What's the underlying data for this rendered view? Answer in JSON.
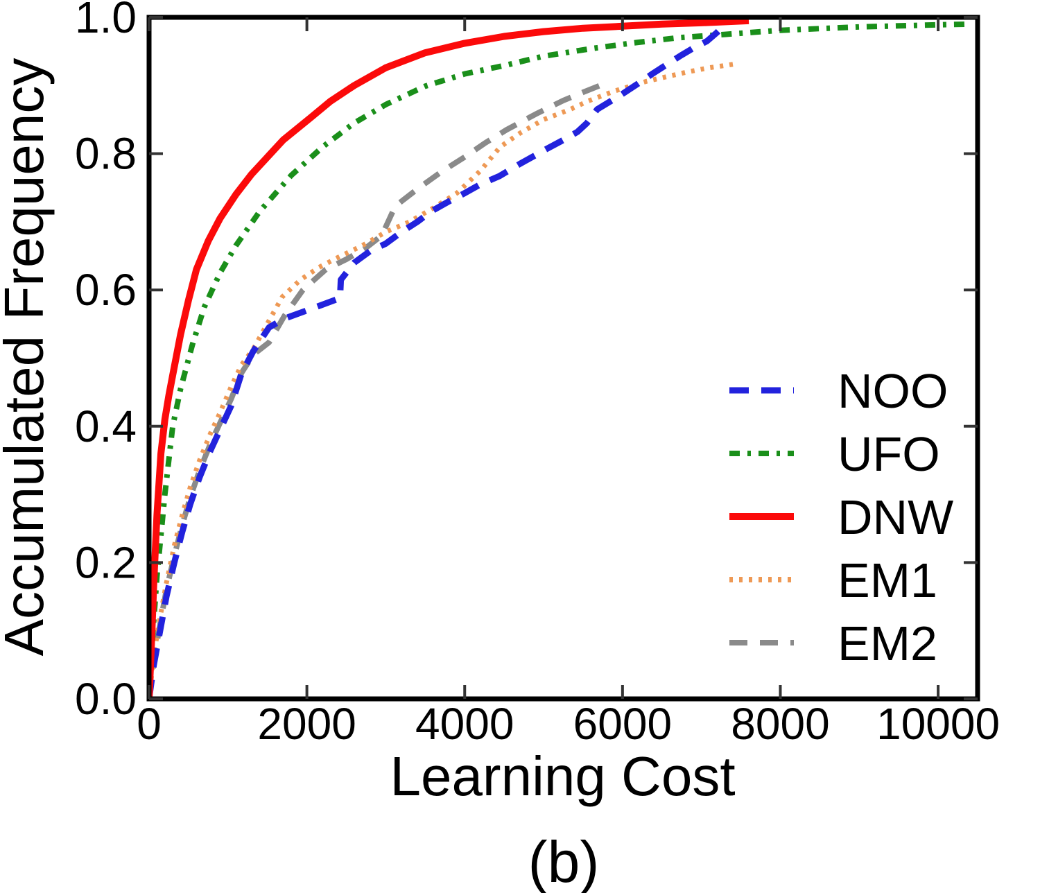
{
  "figure": {
    "caption": "(b)",
    "background": "#ffffff",
    "text_color": "#000000",
    "spine_color": "#000000",
    "tick_color": "#333333"
  },
  "chart_data": {
    "type": "line",
    "title": "",
    "xlabel": "Learning Cost",
    "ylabel": "Accumulated Frequency",
    "xlim": [
      0,
      10500
    ],
    "ylim": [
      0.0,
      1.0
    ],
    "grid": false,
    "legend_position": "lower right",
    "x_ticks": [
      0,
      2000,
      4000,
      6000,
      8000,
      10000
    ],
    "x_tick_labels": [
      "0",
      "2000",
      "4000",
      "6000",
      "8000",
      "10000"
    ],
    "y_ticks": [
      0.0,
      0.2,
      0.4,
      0.6,
      0.8,
      1.0
    ],
    "y_tick_labels": [
      "0.0",
      "0.2",
      "0.4",
      "0.6",
      "0.8",
      "1.0"
    ],
    "series": [
      {
        "name": "NOO",
        "color": "#2222dd",
        "style": "dashed",
        "line_width": 9,
        "dash": "28 18",
        "zorder": 4,
        "points": [
          [
            0,
            0
          ],
          [
            60,
            0.05
          ],
          [
            140,
            0.1
          ],
          [
            220,
            0.15
          ],
          [
            320,
            0.2
          ],
          [
            420,
            0.245
          ],
          [
            520,
            0.285
          ],
          [
            640,
            0.325
          ],
          [
            780,
            0.365
          ],
          [
            900,
            0.395
          ],
          [
            1040,
            0.43
          ],
          [
            1170,
            0.477
          ],
          [
            1320,
            0.51
          ],
          [
            1520,
            0.545
          ],
          [
            1715,
            0.558
          ],
          [
            2050,
            0.572
          ],
          [
            2420,
            0.588
          ],
          [
            2430,
            0.615
          ],
          [
            2600,
            0.64
          ],
          [
            2800,
            0.657
          ],
          [
            3000,
            0.668
          ],
          [
            3200,
            0.685
          ],
          [
            3400,
            0.7
          ],
          [
            3570,
            0.715
          ],
          [
            3800,
            0.73
          ],
          [
            4000,
            0.742
          ],
          [
            4200,
            0.755
          ],
          [
            4440,
            0.767
          ],
          [
            4700,
            0.785
          ],
          [
            5040,
            0.807
          ],
          [
            5250,
            0.82
          ],
          [
            5430,
            0.832
          ],
          [
            5550,
            0.845
          ],
          [
            5680,
            0.865
          ],
          [
            5850,
            0.877
          ],
          [
            5990,
            0.887
          ],
          [
            6200,
            0.903
          ],
          [
            6390,
            0.918
          ],
          [
            6550,
            0.93
          ],
          [
            6740,
            0.944
          ],
          [
            6900,
            0.955
          ],
          [
            7070,
            0.965
          ],
          [
            7200,
            0.978
          ],
          [
            7370,
            0.998
          ]
        ]
      },
      {
        "name": "UFO",
        "color": "#1a8f1a",
        "style": "dashdot",
        "line_width": 8,
        "dash": "15 11 5 11",
        "zorder": 3,
        "points": [
          [
            0,
            0
          ],
          [
            50,
            0.1
          ],
          [
            100,
            0.18
          ],
          [
            200,
            0.3
          ],
          [
            300,
            0.4
          ],
          [
            400,
            0.455
          ],
          [
            550,
            0.52
          ],
          [
            700,
            0.575
          ],
          [
            900,
            0.625
          ],
          [
            1100,
            0.665
          ],
          [
            1400,
            0.715
          ],
          [
            1800,
            0.768
          ],
          [
            2200,
            0.81
          ],
          [
            2600,
            0.845
          ],
          [
            3000,
            0.872
          ],
          [
            3500,
            0.899
          ],
          [
            4000,
            0.917
          ],
          [
            4530,
            0.93
          ],
          [
            5000,
            0.943
          ],
          [
            5600,
            0.954
          ],
          [
            6100,
            0.962
          ],
          [
            6700,
            0.97
          ],
          [
            7300,
            0.975
          ],
          [
            8000,
            0.981
          ],
          [
            9000,
            0.986
          ],
          [
            10000,
            0.989
          ],
          [
            10400,
            0.99
          ]
        ]
      },
      {
        "name": "DNW",
        "color": "#fb0a0a",
        "style": "solid",
        "line_width": 10,
        "dash": "",
        "zorder": 5,
        "points": [
          [
            0,
            0
          ],
          [
            30,
            0.08
          ],
          [
            60,
            0.17
          ],
          [
            100,
            0.27
          ],
          [
            150,
            0.36
          ],
          [
            200,
            0.41
          ],
          [
            250,
            0.445
          ],
          [
            300,
            0.475
          ],
          [
            400,
            0.535
          ],
          [
            500,
            0.585
          ],
          [
            600,
            0.63
          ],
          [
            750,
            0.672
          ],
          [
            900,
            0.705
          ],
          [
            1100,
            0.74
          ],
          [
            1300,
            0.77
          ],
          [
            1700,
            0.82
          ],
          [
            2050,
            0.853
          ],
          [
            2300,
            0.877
          ],
          [
            2600,
            0.9
          ],
          [
            3000,
            0.926
          ],
          [
            3500,
            0.948
          ],
          [
            4000,
            0.962
          ],
          [
            4500,
            0.972
          ],
          [
            5000,
            0.979
          ],
          [
            5500,
            0.984
          ],
          [
            6000,
            0.987
          ],
          [
            6500,
            0.99
          ],
          [
            7000,
            0.992
          ],
          [
            7600,
            0.995
          ]
        ]
      },
      {
        "name": "EM1",
        "color": "#ee9955",
        "style": "dotted",
        "line_width": 7,
        "dash": "5 9",
        "zorder": 2,
        "points": [
          [
            0,
            0
          ],
          [
            60,
            0.065
          ],
          [
            140,
            0.12
          ],
          [
            220,
            0.17
          ],
          [
            320,
            0.225
          ],
          [
            420,
            0.27
          ],
          [
            520,
            0.31
          ],
          [
            640,
            0.35
          ],
          [
            780,
            0.39
          ],
          [
            900,
            0.42
          ],
          [
            1040,
            0.458
          ],
          [
            1170,
            0.49
          ],
          [
            1320,
            0.513
          ],
          [
            1510,
            0.553
          ],
          [
            1690,
            0.59
          ],
          [
            1920,
            0.615
          ],
          [
            2150,
            0.633
          ],
          [
            2400,
            0.648
          ],
          [
            2700,
            0.665
          ],
          [
            3000,
            0.685
          ],
          [
            3300,
            0.7
          ],
          [
            3600,
            0.72
          ],
          [
            3900,
            0.742
          ],
          [
            4200,
            0.775
          ],
          [
            4450,
            0.81
          ],
          [
            4700,
            0.83
          ],
          [
            5000,
            0.85
          ],
          [
            5340,
            0.865
          ],
          [
            5560,
            0.877
          ],
          [
            5900,
            0.892
          ],
          [
            6300,
            0.906
          ],
          [
            6830,
            0.92
          ],
          [
            7100,
            0.926
          ],
          [
            7460,
            0.932
          ]
        ]
      },
      {
        "name": "EM2",
        "color": "#8a8a8a",
        "style": "dashed",
        "line_width": 8,
        "dash": "26 18",
        "zorder": 1,
        "points": [
          [
            0,
            0
          ],
          [
            60,
            0.055
          ],
          [
            140,
            0.11
          ],
          [
            220,
            0.16
          ],
          [
            320,
            0.21
          ],
          [
            420,
            0.255
          ],
          [
            520,
            0.295
          ],
          [
            640,
            0.335
          ],
          [
            780,
            0.375
          ],
          [
            900,
            0.405
          ],
          [
            1040,
            0.44
          ],
          [
            1170,
            0.478
          ],
          [
            1320,
            0.505
          ],
          [
            1520,
            0.523
          ],
          [
            1715,
            0.562
          ],
          [
            1950,
            0.6
          ],
          [
            2240,
            0.63
          ],
          [
            2500,
            0.645
          ],
          [
            2750,
            0.662
          ],
          [
            2950,
            0.68
          ],
          [
            3120,
            0.723
          ],
          [
            3400,
            0.748
          ],
          [
            3700,
            0.773
          ],
          [
            4000,
            0.795
          ],
          [
            4250,
            0.815
          ],
          [
            4530,
            0.835
          ],
          [
            4900,
            0.858
          ],
          [
            5250,
            0.878
          ],
          [
            5500,
            0.89
          ],
          [
            5820,
            0.905
          ]
        ]
      }
    ]
  }
}
